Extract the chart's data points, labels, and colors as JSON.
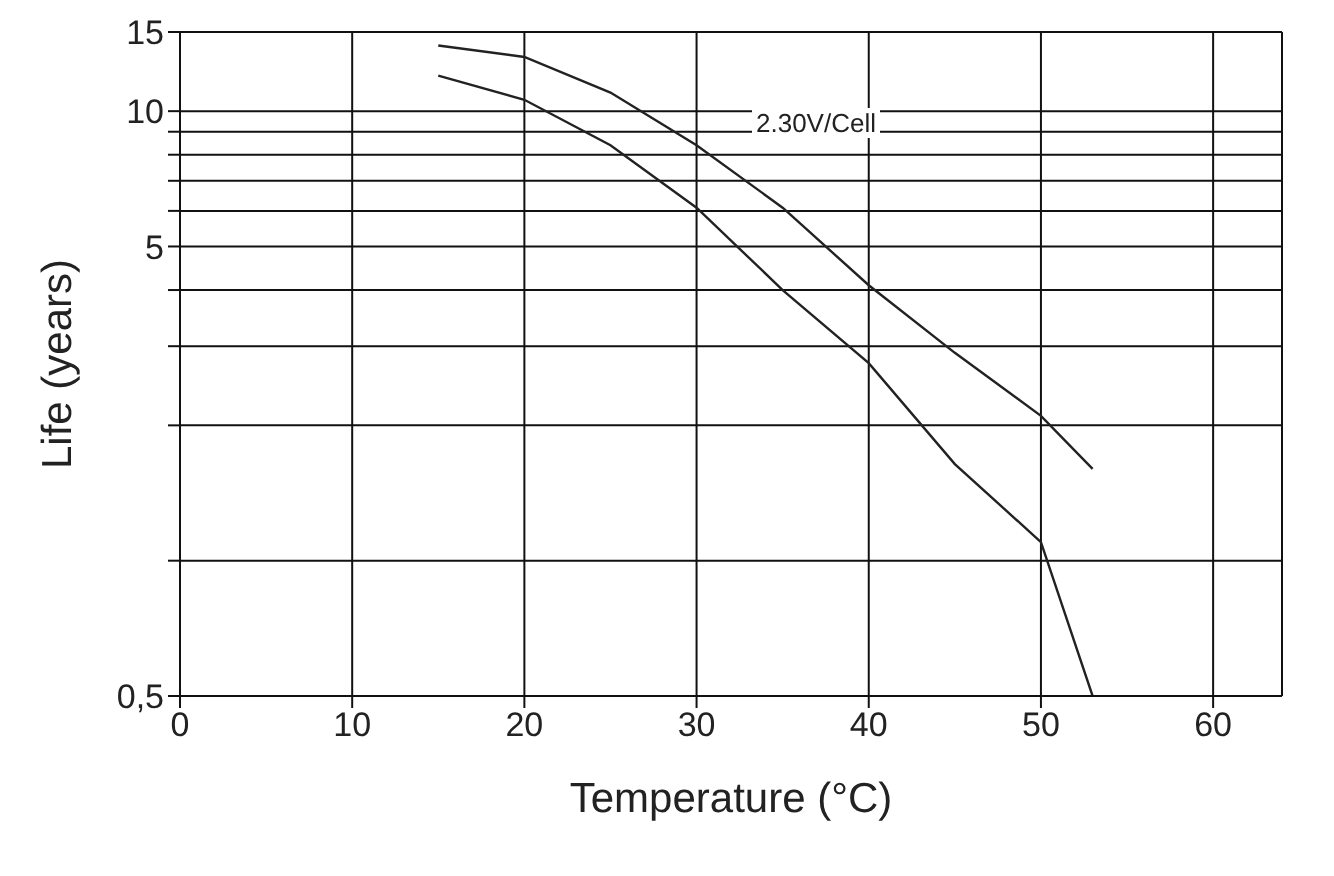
{
  "chart_data": {
    "type": "line",
    "xlabel": "Temperature (°C)",
    "ylabel": "Life (years)",
    "annotations": [
      "2.30V/Cell"
    ],
    "x": [
      15,
      20,
      25,
      30,
      35,
      40,
      45,
      50,
      53
    ],
    "series": [
      {
        "color": "#222222",
        "values": [
          14,
          13.2,
          11,
          8.4,
          6.1,
          4.1,
          2.9,
          2.1,
          1.6
        ]
      },
      {
        "color": "#222222",
        "values": [
          12,
          10.6,
          8.4,
          6.1,
          4,
          2.75,
          1.64,
          1.1,
          0.5
        ]
      }
    ],
    "xlim": [
      0,
      64
    ],
    "xticks": [
      0,
      10,
      20,
      30,
      40,
      50,
      60
    ],
    "log": "y",
    "ylim": [
      0.5,
      15
    ],
    "yticks": [
      {
        "value": 0.5,
        "label": "0,5"
      },
      {
        "value": 1,
        "label": null
      },
      {
        "value": 2,
        "label": null
      },
      {
        "value": 3,
        "label": null
      },
      {
        "value": 4,
        "label": null
      },
      5,
      {
        "value": 6,
        "label": null
      },
      {
        "value": 7,
        "label": null
      },
      {
        "value": 8,
        "label": null
      },
      {
        "value": 9,
        "label": null
      },
      10,
      15
    ],
    "grid": true
  }
}
